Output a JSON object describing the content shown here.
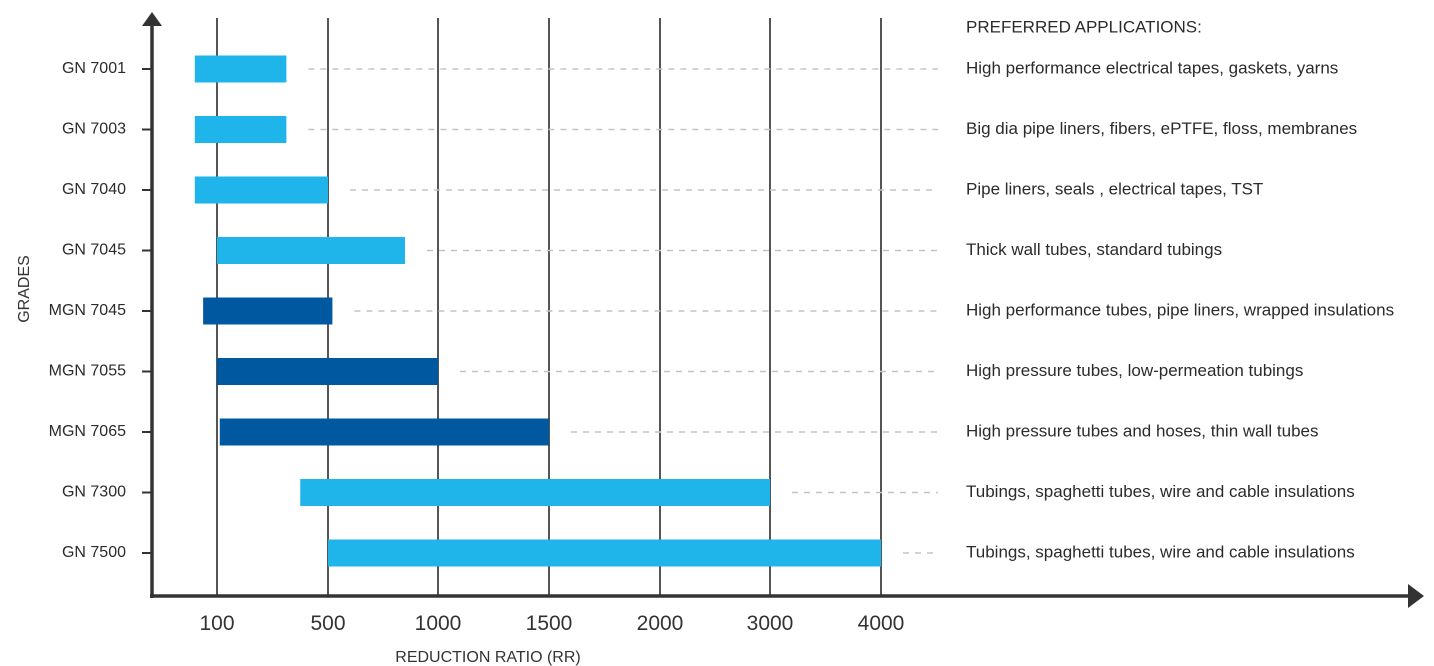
{
  "chart_data": {
    "type": "bar",
    "subtype": "floating-range-horizontal",
    "xlabel": "REDUCTION RATIO (RR)",
    "ylabel": "GRADES",
    "x_ticks": [
      "100",
      "500",
      "1000",
      "1500",
      "2000",
      "3000",
      "4000"
    ],
    "x_scale": "categorical-ordinal",
    "grid": "vertical",
    "applications_header": "PREFERRED APPLICATIONS:",
    "colors": {
      "GN": "#1fb4ea",
      "MGN": "#0058a0"
    },
    "bars": [
      {
        "grade": "GN 7001",
        "family": "GN",
        "start": 20,
        "end": 350,
        "application": "High performance electrical tapes, gaskets, yarns"
      },
      {
        "grade": "GN 7003",
        "family": "GN",
        "start": 20,
        "end": 350,
        "application": "Big dia pipe liners, fibers, ePTFE, floss, membranes"
      },
      {
        "grade": "GN 7040",
        "family": "GN",
        "start": 20,
        "end": 500,
        "application": "Pipe liners, seals , electrical tapes, TST"
      },
      {
        "grade": "GN 7045",
        "family": "GN",
        "start": 100,
        "end": 850,
        "application": "Thick wall tubes, standard tubings"
      },
      {
        "grade": "MGN 7045",
        "family": "MGN",
        "start": 50,
        "end": 520,
        "application": "High performance tubes, pipe liners, wrapped insulations"
      },
      {
        "grade": "MGN 7055",
        "family": "MGN",
        "start": 100,
        "end": 1000,
        "application": "High pressure tubes, low-permeation tubings"
      },
      {
        "grade": "MGN 7065",
        "family": "MGN",
        "start": 110,
        "end": 1500,
        "application": "High pressure tubes and hoses, thin wall tubes"
      },
      {
        "grade": "GN 7300",
        "family": "GN",
        "start": 400,
        "end": 3000,
        "application": "Tubings, spaghetti tubes, wire and cable insulations"
      },
      {
        "grade": "GN 7500",
        "family": "GN",
        "start": 500,
        "end": 4000,
        "application": "Tubings, spaghetti tubes, wire and cable insulations"
      }
    ]
  }
}
